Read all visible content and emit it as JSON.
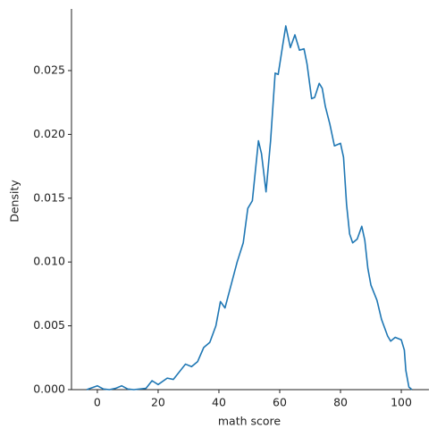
{
  "chart_data": {
    "type": "line",
    "xlabel": "math score",
    "ylabel": "Density",
    "color": "#1f77b4",
    "x": [
      -3.5,
      0,
      2,
      4,
      6,
      8,
      10,
      12,
      16,
      18,
      20,
      23,
      25,
      29,
      31,
      33,
      35,
      37,
      39,
      40.5,
      42,
      44,
      46,
      48,
      49.5,
      51,
      53,
      54,
      55.5,
      57,
      58.5,
      59.5,
      61,
      62,
      63.5,
      65,
      66.5,
      68,
      69,
      70.5,
      71.5,
      73,
      74,
      75,
      76.5,
      78,
      80,
      81,
      82,
      83,
      84,
      85.5,
      87,
      88,
      89,
      90,
      92,
      93.5,
      95.5,
      96.5,
      98,
      100,
      101,
      101.5,
      102.5,
      103.5
    ],
    "values": [
      0,
      0.0003,
      5e-05,
      0,
      0.0001,
      0.0003,
      5e-05,
      0,
      0.0001,
      0.0007,
      0.0004,
      0.0009,
      0.0008,
      0.002,
      0.0018,
      0.0022,
      0.0033,
      0.0037,
      0.005,
      0.0069,
      0.0064,
      0.0082,
      0.01,
      0.0115,
      0.0142,
      0.0148,
      0.0195,
      0.0185,
      0.0155,
      0.0195,
      0.0248,
      0.0247,
      0.027,
      0.0285,
      0.0268,
      0.0278,
      0.0266,
      0.0267,
      0.0255,
      0.0228,
      0.0229,
      0.024,
      0.0236,
      0.0222,
      0.0208,
      0.0191,
      0.0193,
      0.0182,
      0.0145,
      0.0122,
      0.0115,
      0.0118,
      0.0128,
      0.0117,
      0.0095,
      0.0082,
      0.007,
      0.0055,
      0.0042,
      0.0038,
      0.0041,
      0.0039,
      0.0031,
      0.0015,
      0.0002,
      0
    ],
    "xlim": [
      -8.5,
      109.1
    ],
    "ylim": [
      0,
      0.02983
    ],
    "xticks": [
      0,
      20,
      40,
      60,
      80,
      100
    ],
    "yticks": [
      {
        "value": 0,
        "label": "0.000"
      },
      {
        "value": 0.005,
        "label": "0.005"
      },
      {
        "value": 0.01,
        "label": "0.010"
      },
      {
        "value": 0.015,
        "label": "0.015"
      },
      {
        "value": 0.02,
        "label": "0.020"
      },
      {
        "value": 0.025,
        "label": "0.025"
      }
    ]
  }
}
